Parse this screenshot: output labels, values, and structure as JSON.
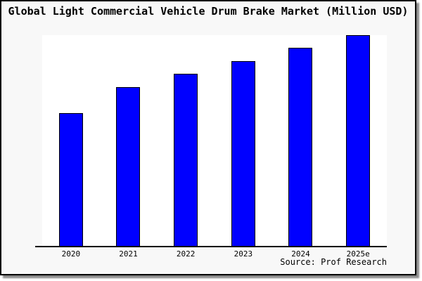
{
  "window": {
    "background_color": "#f8f8f8",
    "border_color": "#000000",
    "shadow_color": "#8a8a8a"
  },
  "title": "Global Light Commercial Vehicle Drum Brake Market (Million USD)",
  "source_credit": "Source: Prof Research",
  "chart_data": {
    "type": "bar",
    "title": "Global Light Commercial Vehicle Drum Brake Market (Million USD)",
    "categories": [
      "2020",
      "2021",
      "2022",
      "2023",
      "2024",
      "2025e"
    ],
    "values": [
      63,
      75.3,
      81.7,
      87.7,
      94,
      100
    ],
    "value_note": "no numeric y-axis shown in image; values estimated from bar heights, normalized so 2025e = 100",
    "xlabel": "",
    "ylabel": "",
    "ylim": [
      0,
      100
    ],
    "grid": false,
    "legend": false,
    "y_axis_visible": false,
    "bar_color": "#0000ff",
    "bar_border_color": "#000000",
    "plot_background": "#ffffff"
  }
}
